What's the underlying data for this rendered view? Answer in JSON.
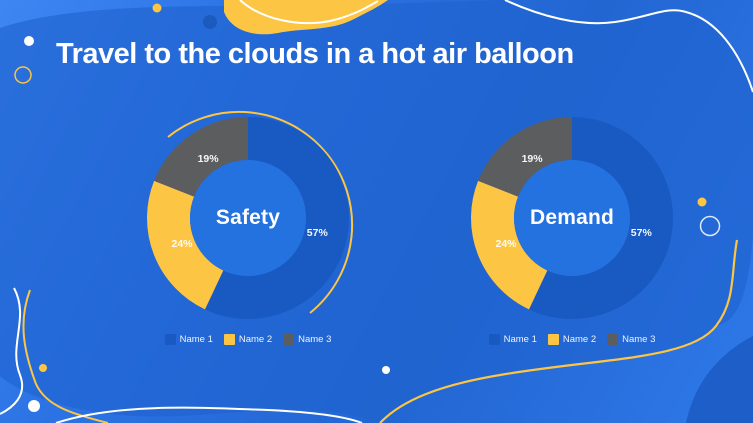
{
  "slide": {
    "title": "Travel to the clouds in a hot air balloon"
  },
  "chart_data": [
    {
      "type": "pie",
      "subtype": "donut",
      "title": "Safety",
      "labels": [
        "Name 1",
        "Name 2",
        "Name 3"
      ],
      "values": [
        57,
        24,
        19
      ],
      "value_labels": [
        "57%",
        "24%",
        "19%"
      ],
      "colors": [
        "#1859c2",
        "#fcc544",
        "#5c5d5f"
      ],
      "legend_position": "bottom"
    },
    {
      "type": "pie",
      "subtype": "donut",
      "title": "Demand",
      "labels": [
        "Name 1",
        "Name 2",
        "Name 3"
      ],
      "values": [
        57,
        24,
        19
      ],
      "value_labels": [
        "57%",
        "24%",
        "19%"
      ],
      "colors": [
        "#1859c2",
        "#fcc544",
        "#5c5d5f"
      ],
      "legend_position": "bottom"
    }
  ],
  "colors": {
    "background_blue": "#2268d4",
    "accent_yellow": "#fcc544",
    "segment_blue": "#1859c2",
    "segment_gray": "#5c5d5f",
    "text_white": "#ffffff"
  }
}
